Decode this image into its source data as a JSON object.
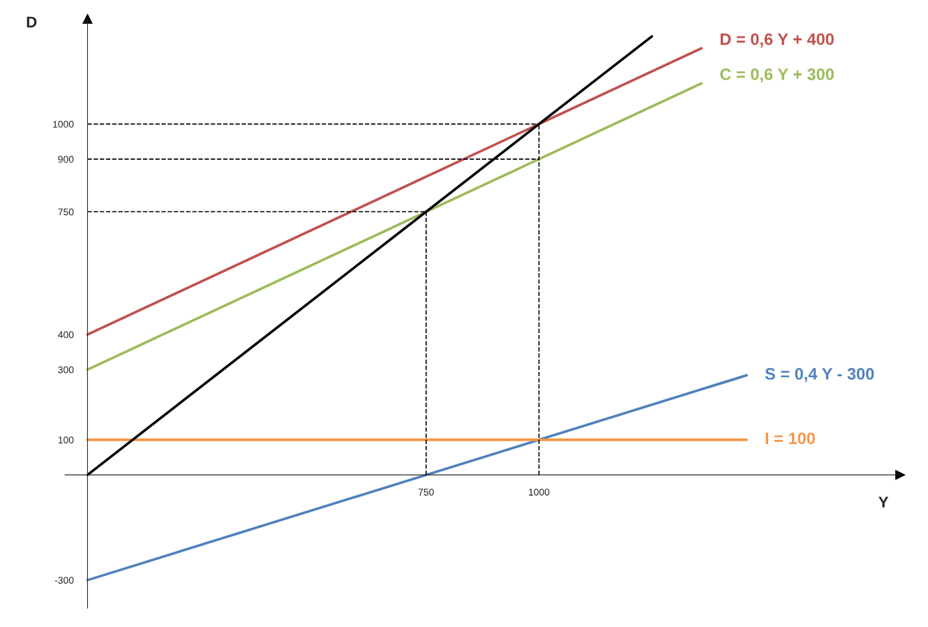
{
  "chart_data": {
    "type": "line",
    "xlabel": "Y",
    "ylabel": "D",
    "xlim": [
      -50,
      1800
    ],
    "ylim": [
      -380,
      1300
    ],
    "xticks": [
      750,
      1000
    ],
    "yticks": [
      -300,
      100,
      300,
      400,
      750,
      900,
      1000
    ],
    "grid": false,
    "legend": false,
    "series": [
      {
        "name": "D = 0,6 Y + 400",
        "color": "#c0504d",
        "x": [
          0,
          1360
        ],
        "values": [
          400,
          1216
        ]
      },
      {
        "name": "C = 0,6 Y + 300",
        "color": "#9bbb59",
        "x": [
          0,
          1360
        ],
        "values": [
          300,
          1116
        ]
      },
      {
        "name": "S = 0,4 Y - 300",
        "color": "#4f81bd",
        "x": [
          0,
          1460
        ],
        "values": [
          -300,
          284
        ]
      },
      {
        "name": "I = 100",
        "color": "#f79646",
        "x": [
          0,
          1460
        ],
        "values": [
          100,
          100
        ]
      },
      {
        "color": "#000000",
        "x": [
          0,
          1250
        ],
        "values": [
          0,
          1250
        ]
      },
      {
        "color": "#000000",
        "line_style": "dashed",
        "x": [
          0,
          1000
        ],
        "values": [
          1000,
          1000
        ]
      },
      {
        "color": "#000000",
        "line_style": "dashed",
        "x": [
          0,
          1000
        ],
        "values": [
          900,
          900
        ]
      },
      {
        "color": "#000000",
        "line_style": "dashed",
        "x": [
          0,
          750
        ],
        "values": [
          750,
          750
        ]
      },
      {
        "color": "#000000",
        "line_style": "dashed",
        "x": [
          750,
          750
        ],
        "values": [
          0,
          750
        ]
      },
      {
        "color": "#000000",
        "line_style": "dashed",
        "x": [
          1000,
          1000
        ],
        "values": [
          0,
          1000
        ]
      }
    ]
  }
}
